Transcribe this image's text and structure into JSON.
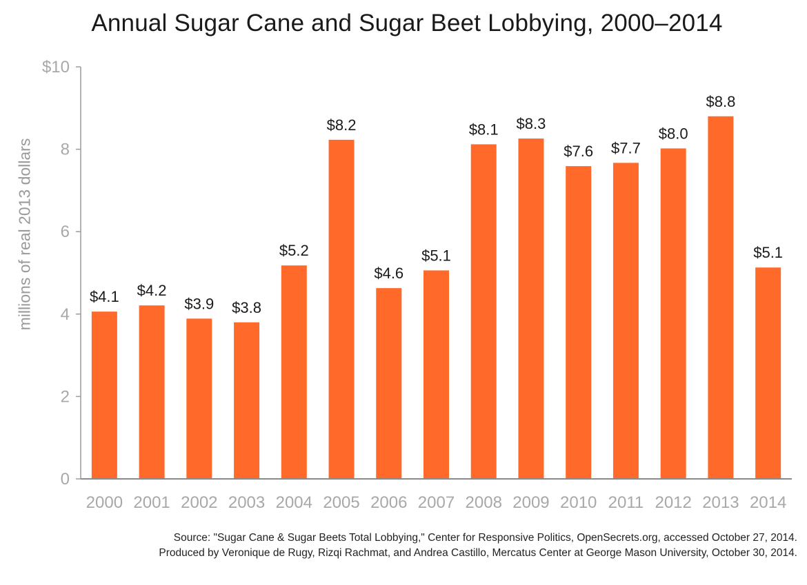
{
  "chart_data": {
    "type": "bar",
    "title": "Annual Sugar Cane and Sugar Beet Lobbying, 2000–2014",
    "ylabel": "millions of real 2013 dollars",
    "xlabel": "",
    "categories": [
      "2000",
      "2001",
      "2002",
      "2003",
      "2004",
      "2005",
      "2006",
      "2007",
      "2008",
      "2009",
      "2010",
      "2011",
      "2012",
      "2013",
      "2014"
    ],
    "values": [
      4.06,
      4.21,
      3.89,
      3.8,
      5.18,
      8.23,
      4.63,
      5.06,
      8.12,
      8.26,
      7.59,
      7.67,
      8.02,
      8.8,
      5.13
    ],
    "data_labels": [
      "$4.1",
      "$4.2",
      "$3.9",
      "$3.8",
      "$5.2",
      "$8.2",
      "$4.6",
      "$5.1",
      "$8.1",
      "$8.3",
      "$7.6",
      "$7.7",
      "$8.0",
      "$8.8",
      "$5.1"
    ],
    "ylim": [
      0,
      10
    ],
    "yticks": [
      0,
      2,
      4,
      6,
      8,
      10
    ],
    "ytick_labels": [
      "0",
      "2",
      "4",
      "6",
      "8",
      "$10"
    ],
    "grid": false,
    "legend": "none",
    "bar_color": "#ff6a2b"
  },
  "footer": {
    "source_line1": "Source: \"Sugar Cane & Sugar Beets Total Lobbying,\" Center for Responsive Politics, OpenSecrets.org, accessed October 27, 2014.",
    "source_line2": "Produced by Veronique de Rugy, Rizqi Rachmat, and Andrea Castillo, Mercatus Center at George Mason University, October 30, 2014."
  }
}
